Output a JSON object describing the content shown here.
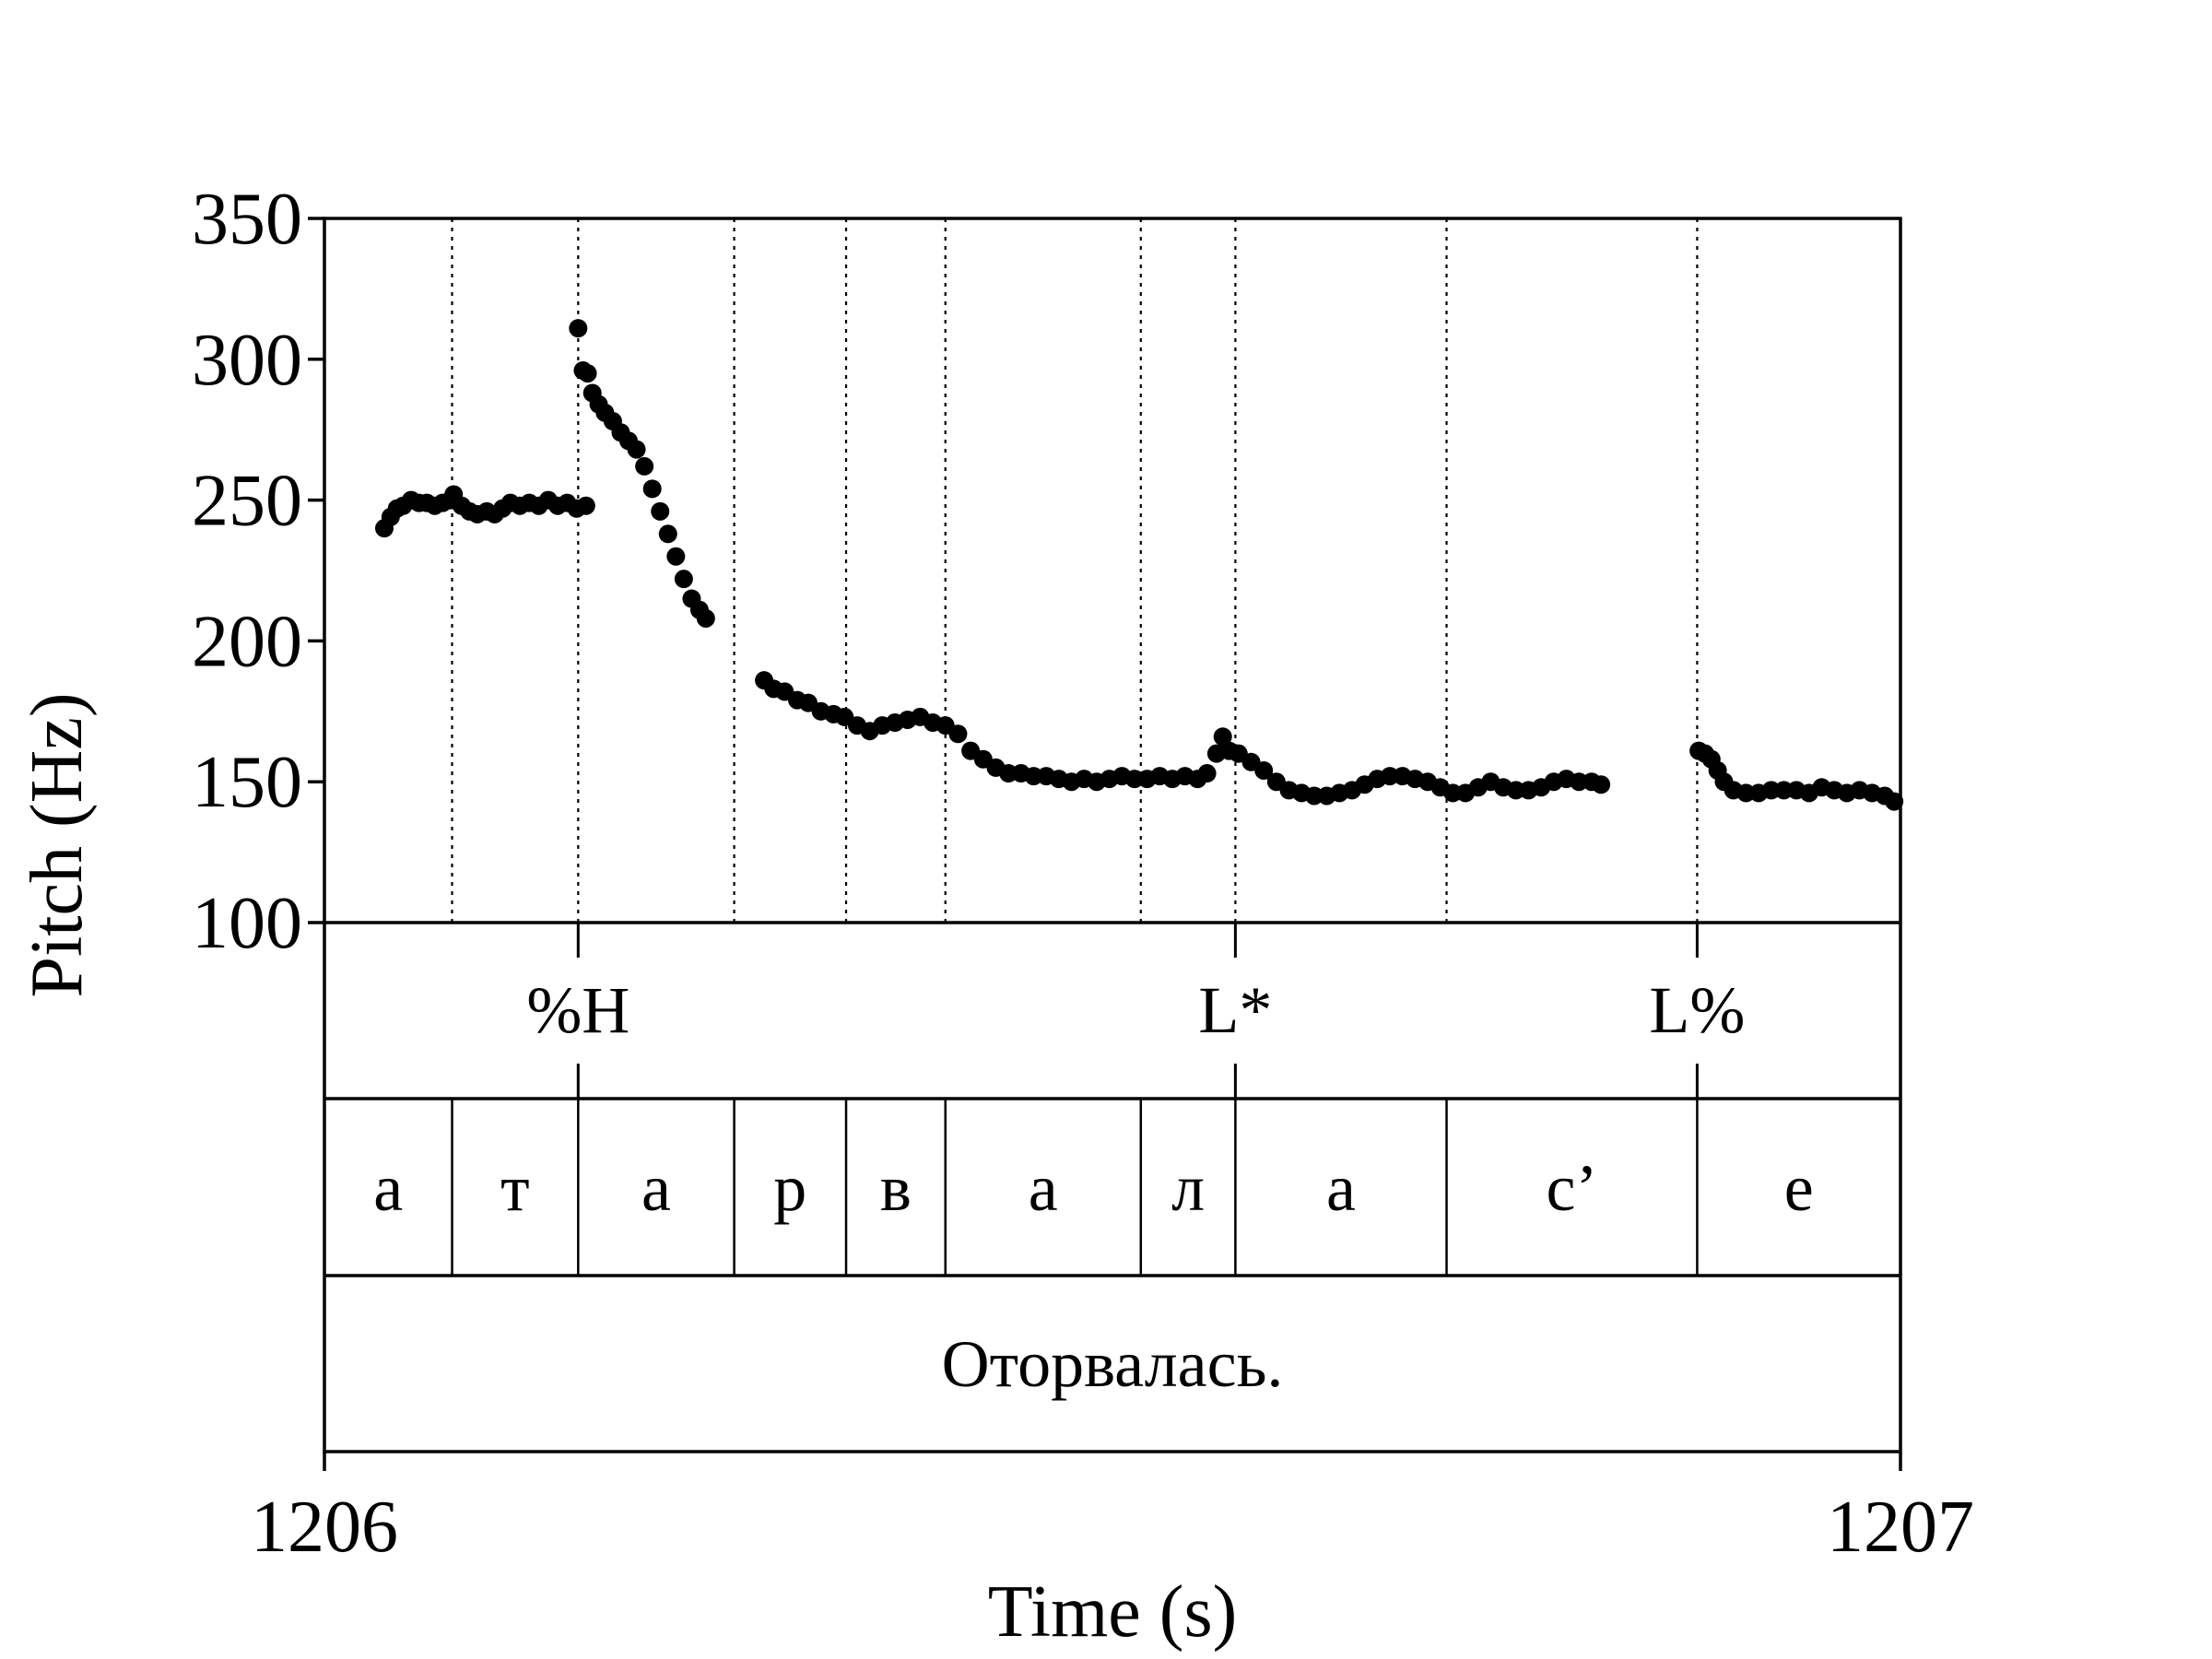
{
  "chart_data": {
    "type": "scatter",
    "title": "",
    "xlabel": "Time (s)",
    "ylabel": "Pitch (Hz)",
    "xlim": [
      1206,
      1207
    ],
    "ylim": [
      100,
      350
    ],
    "x_tick_labels": [
      "1206",
      "1207"
    ],
    "y_ticks": [
      100,
      150,
      200,
      250,
      300,
      350
    ],
    "y_tick_labels": [
      "100",
      "150",
      "200",
      "250",
      "300",
      "350"
    ],
    "grid": false,
    "marker_color": "#000000",
    "series": [
      {
        "points": [
          [
            1206.038,
            240
          ],
          [
            1206.042,
            244
          ],
          [
            1206.046,
            247
          ],
          [
            1206.05,
            248
          ],
          [
            1206.055,
            250
          ],
          [
            1206.06,
            249
          ],
          [
            1206.065,
            249
          ],
          [
            1206.07,
            248
          ],
          [
            1206.075,
            249
          ],
          [
            1206.08,
            250
          ],
          [
            1206.082,
            252
          ],
          [
            1206.087,
            248
          ],
          [
            1206.092,
            246
          ],
          [
            1206.097,
            245
          ],
          [
            1206.103,
            246
          ],
          [
            1206.108,
            245
          ],
          [
            1206.113,
            247
          ],
          [
            1206.118,
            249
          ],
          [
            1206.124,
            248
          ],
          [
            1206.13,
            249
          ],
          [
            1206.136,
            248
          ],
          [
            1206.142,
            250
          ],
          [
            1206.148,
            248
          ],
          [
            1206.154,
            249
          ],
          [
            1206.16,
            247
          ],
          [
            1206.166,
            248
          ],
          [
            1206.161,
            311
          ],
          [
            1206.164,
            296
          ],
          [
            1206.167,
            295
          ],
          [
            1206.17,
            288
          ],
          [
            1206.174,
            284
          ],
          [
            1206.178,
            281
          ],
          [
            1206.183,
            278
          ],
          [
            1206.188,
            274
          ],
          [
            1206.193,
            271
          ],
          [
            1206.198,
            268
          ],
          [
            1206.203,
            262
          ],
          [
            1206.208,
            254
          ],
          [
            1206.213,
            246
          ],
          [
            1206.218,
            238
          ],
          [
            1206.223,
            230
          ],
          [
            1206.228,
            222
          ],
          [
            1206.233,
            215
          ],
          [
            1206.238,
            211
          ],
          [
            1206.242,
            208
          ],
          [
            1206.279,
            186
          ],
          [
            1206.285,
            183
          ],
          [
            1206.292,
            182
          ],
          [
            1206.3,
            179
          ],
          [
            1206.307,
            178
          ],
          [
            1206.315,
            175
          ],
          [
            1206.323,
            174
          ],
          [
            1206.33,
            173
          ],
          [
            1206.338,
            170
          ],
          [
            1206.346,
            168
          ],
          [
            1206.354,
            170
          ],
          [
            1206.362,
            171
          ],
          [
            1206.37,
            172
          ],
          [
            1206.378,
            173
          ],
          [
            1206.386,
            171
          ],
          [
            1206.394,
            170
          ],
          [
            1206.402,
            167
          ],
          [
            1206.41,
            161
          ],
          [
            1206.418,
            158
          ],
          [
            1206.426,
            155
          ],
          [
            1206.434,
            153
          ],
          [
            1206.442,
            153
          ],
          [
            1206.45,
            152
          ],
          [
            1206.458,
            152
          ],
          [
            1206.466,
            151
          ],
          [
            1206.474,
            150
          ],
          [
            1206.482,
            151
          ],
          [
            1206.49,
            150
          ],
          [
            1206.498,
            151
          ],
          [
            1206.506,
            152
          ],
          [
            1206.514,
            151
          ],
          [
            1206.522,
            151
          ],
          [
            1206.53,
            152
          ],
          [
            1206.538,
            151
          ],
          [
            1206.546,
            152
          ],
          [
            1206.554,
            151
          ],
          [
            1206.56,
            153
          ],
          [
            1206.566,
            160
          ],
          [
            1206.57,
            166
          ],
          [
            1206.574,
            161
          ],
          [
            1206.58,
            160
          ],
          [
            1206.588,
            157
          ],
          [
            1206.596,
            154
          ],
          [
            1206.604,
            150
          ],
          [
            1206.612,
            147
          ],
          [
            1206.62,
            146
          ],
          [
            1206.628,
            145
          ],
          [
            1206.636,
            145
          ],
          [
            1206.644,
            146
          ],
          [
            1206.652,
            147
          ],
          [
            1206.66,
            149
          ],
          [
            1206.668,
            151
          ],
          [
            1206.676,
            152
          ],
          [
            1206.684,
            152
          ],
          [
            1206.692,
            151
          ],
          [
            1206.7,
            150
          ],
          [
            1206.708,
            148
          ],
          [
            1206.716,
            146
          ],
          [
            1206.724,
            146
          ],
          [
            1206.732,
            148
          ],
          [
            1206.74,
            150
          ],
          [
            1206.748,
            148
          ],
          [
            1206.756,
            147
          ],
          [
            1206.764,
            147
          ],
          [
            1206.772,
            148
          ],
          [
            1206.78,
            150
          ],
          [
            1206.788,
            151
          ],
          [
            1206.796,
            150
          ],
          [
            1206.804,
            150
          ],
          [
            1206.81,
            149
          ],
          [
            1206.872,
            161
          ],
          [
            1206.876,
            160
          ],
          [
            1206.88,
            158
          ],
          [
            1206.884,
            154
          ],
          [
            1206.888,
            150
          ],
          [
            1206.894,
            147
          ],
          [
            1206.902,
            146
          ],
          [
            1206.91,
            146
          ],
          [
            1206.918,
            147
          ],
          [
            1206.926,
            147
          ],
          [
            1206.934,
            147
          ],
          [
            1206.942,
            146
          ],
          [
            1206.95,
            148
          ],
          [
            1206.958,
            147
          ],
          [
            1206.966,
            146
          ],
          [
            1206.974,
            147
          ],
          [
            1206.982,
            146
          ],
          [
            1206.99,
            145
          ],
          [
            1206.996,
            143
          ]
        ]
      }
    ],
    "boundaries": [
      1206.081,
      1206.161,
      1206.26,
      1206.331,
      1206.394,
      1206.518,
      1206.578,
      1206.712,
      1206.871
    ],
    "tone_tier": [
      {
        "label": "%H",
        "time": 1206.161
      },
      {
        "label": "L*",
        "time": 1206.578
      },
      {
        "label": "L%",
        "time": 1206.871
      }
    ],
    "segment_tier": [
      {
        "label": "а",
        "start": 1206.0,
        "end": 1206.081
      },
      {
        "label": "т",
        "start": 1206.081,
        "end": 1206.161
      },
      {
        "label": "а",
        "start": 1206.161,
        "end": 1206.26
      },
      {
        "label": "р",
        "start": 1206.26,
        "end": 1206.331
      },
      {
        "label": "в",
        "start": 1206.331,
        "end": 1206.394
      },
      {
        "label": "а",
        "start": 1206.394,
        "end": 1206.518
      },
      {
        "label": "л",
        "start": 1206.518,
        "end": 1206.578
      },
      {
        "label": "а",
        "start": 1206.578,
        "end": 1206.712
      },
      {
        "label": "с’",
        "start": 1206.712,
        "end": 1206.871
      },
      {
        "label": "е",
        "start": 1206.871,
        "end": 1207.0
      }
    ],
    "sentence_tier": "Оторвалась."
  }
}
